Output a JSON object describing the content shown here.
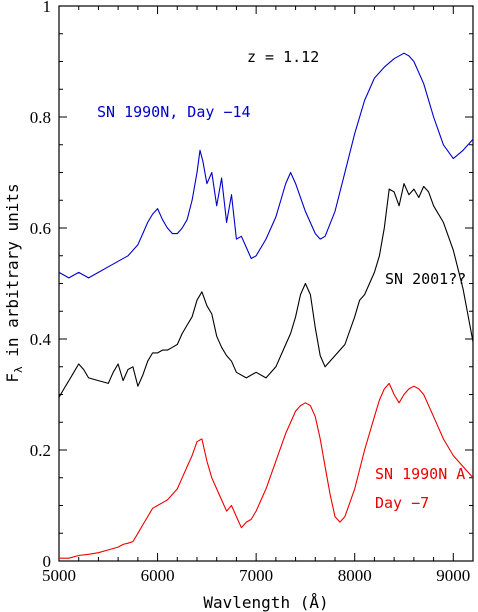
{
  "chart_data": {
    "type": "line",
    "title": "",
    "xlabel": "Wavlength (Å)",
    "ylabel_main": "F",
    "ylabel_sub": "λ",
    "ylabel_rest": " in arbitrary units",
    "xlim": [
      5000,
      9200
    ],
    "ylim": [
      0,
      1
    ],
    "xticks": [
      5000,
      6000,
      7000,
      8000,
      9000
    ],
    "xtick_labels": [
      "5000",
      "6000",
      "7000",
      "8000",
      "9000"
    ],
    "yticks": [
      0,
      0.2,
      0.4,
      0.6,
      0.8,
      1
    ],
    "ytick_labels": [
      "0",
      "0.2",
      "0.4",
      "0.6",
      "0.8",
      "1"
    ],
    "grid": false,
    "annotations": {
      "redshift": "z = 1.12",
      "blue_label": "SN 1990N, Day −14",
      "black_label": "SN 2001??",
      "red_label_1": "SN 1990N A",
      "red_label_2": "Day −7"
    },
    "series": [
      {
        "name": "SN 1990N, Day −14",
        "color": "#0000cc",
        "x": [
          5000,
          5100,
          5200,
          5300,
          5400,
          5500,
          5600,
          5700,
          5800,
          5850,
          5900,
          5950,
          6000,
          6050,
          6100,
          6150,
          6200,
          6250,
          6300,
          6350,
          6400,
          6430,
          6460,
          6500,
          6550,
          6600,
          6650,
          6700,
          6750,
          6800,
          6850,
          6900,
          6950,
          7000,
          7100,
          7200,
          7300,
          7350,
          7400,
          7500,
          7600,
          7650,
          7700,
          7800,
          7900,
          8000,
          8100,
          8200,
          8300,
          8400,
          8500,
          8550,
          8600,
          8700,
          8800,
          8900,
          9000,
          9100,
          9200
        ],
        "y": [
          0.52,
          0.51,
          0.52,
          0.51,
          0.52,
          0.53,
          0.54,
          0.55,
          0.57,
          0.59,
          0.61,
          0.625,
          0.635,
          0.615,
          0.6,
          0.59,
          0.59,
          0.6,
          0.615,
          0.65,
          0.7,
          0.74,
          0.72,
          0.68,
          0.7,
          0.64,
          0.69,
          0.61,
          0.66,
          0.58,
          0.585,
          0.565,
          0.545,
          0.55,
          0.58,
          0.62,
          0.68,
          0.7,
          0.68,
          0.63,
          0.59,
          0.58,
          0.585,
          0.63,
          0.7,
          0.77,
          0.83,
          0.87,
          0.89,
          0.905,
          0.915,
          0.91,
          0.9,
          0.86,
          0.8,
          0.75,
          0.725,
          0.74,
          0.76
        ]
      },
      {
        "name": "SN 2001??",
        "color": "#000000",
        "x": [
          5000,
          5050,
          5100,
          5150,
          5200,
          5250,
          5300,
          5400,
          5500,
          5550,
          5600,
          5650,
          5700,
          5750,
          5800,
          5850,
          5900,
          5950,
          6000,
          6050,
          6100,
          6150,
          6200,
          6250,
          6300,
          6350,
          6400,
          6450,
          6500,
          6550,
          6600,
          6650,
          6700,
          6750,
          6800,
          6900,
          7000,
          7100,
          7200,
          7250,
          7300,
          7350,
          7400,
          7450,
          7500,
          7550,
          7600,
          7650,
          7700,
          7800,
          7900,
          8000,
          8050,
          8100,
          8150,
          8200,
          8250,
          8300,
          8350,
          8400,
          8450,
          8500,
          8550,
          8600,
          8650,
          8700,
          8750,
          8800,
          8900,
          9000,
          9100,
          9200
        ],
        "y": [
          0.295,
          0.31,
          0.325,
          0.34,
          0.355,
          0.345,
          0.33,
          0.325,
          0.32,
          0.34,
          0.355,
          0.325,
          0.345,
          0.35,
          0.315,
          0.335,
          0.36,
          0.375,
          0.375,
          0.38,
          0.38,
          0.385,
          0.39,
          0.41,
          0.425,
          0.44,
          0.47,
          0.485,
          0.46,
          0.445,
          0.405,
          0.385,
          0.37,
          0.36,
          0.34,
          0.33,
          0.34,
          0.33,
          0.35,
          0.37,
          0.39,
          0.41,
          0.44,
          0.48,
          0.5,
          0.48,
          0.42,
          0.37,
          0.35,
          0.37,
          0.39,
          0.44,
          0.47,
          0.48,
          0.5,
          0.52,
          0.55,
          0.6,
          0.67,
          0.665,
          0.64,
          0.68,
          0.66,
          0.67,
          0.655,
          0.675,
          0.665,
          0.64,
          0.61,
          0.56,
          0.49,
          0.395
        ]
      },
      {
        "name": "SN 1990N A, Day −7",
        "color": "#ee0000",
        "x": [
          5000,
          5100,
          5200,
          5300,
          5400,
          5500,
          5600,
          5650,
          5700,
          5750,
          5800,
          5850,
          5900,
          5950,
          6000,
          6050,
          6100,
          6150,
          6200,
          6250,
          6300,
          6350,
          6400,
          6450,
          6500,
          6550,
          6600,
          6650,
          6700,
          6750,
          6800,
          6850,
          6900,
          6950,
          7000,
          7100,
          7200,
          7300,
          7400,
          7450,
          7500,
          7550,
          7600,
          7650,
          7700,
          7750,
          7800,
          7850,
          7900,
          8000,
          8100,
          8200,
          8250,
          8300,
          8350,
          8400,
          8450,
          8500,
          8550,
          8600,
          8650,
          8700,
          8800,
          8900,
          9000,
          9100,
          9200
        ],
        "y": [
          0.005,
          0.005,
          0.01,
          0.012,
          0.015,
          0.02,
          0.025,
          0.03,
          0.032,
          0.035,
          0.05,
          0.065,
          0.08,
          0.095,
          0.1,
          0.105,
          0.11,
          0.12,
          0.13,
          0.15,
          0.17,
          0.19,
          0.215,
          0.22,
          0.18,
          0.15,
          0.13,
          0.11,
          0.09,
          0.1,
          0.08,
          0.06,
          0.07,
          0.075,
          0.09,
          0.13,
          0.18,
          0.23,
          0.27,
          0.28,
          0.285,
          0.28,
          0.26,
          0.22,
          0.17,
          0.12,
          0.08,
          0.07,
          0.08,
          0.13,
          0.2,
          0.26,
          0.29,
          0.31,
          0.32,
          0.3,
          0.285,
          0.3,
          0.31,
          0.315,
          0.31,
          0.3,
          0.26,
          0.22,
          0.19,
          0.17,
          0.15
        ]
      }
    ]
  }
}
